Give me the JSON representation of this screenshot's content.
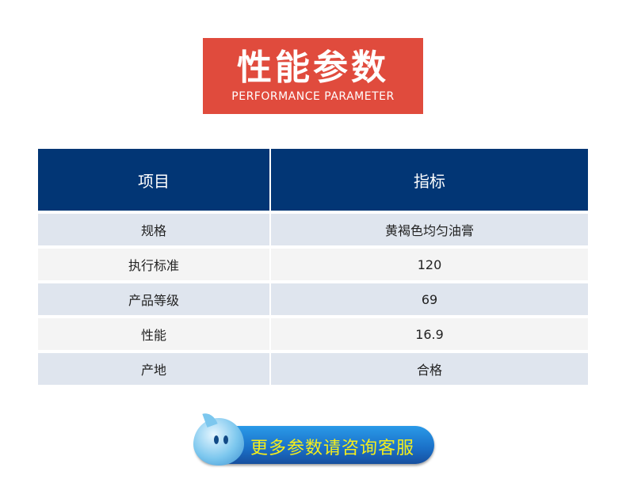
{
  "title": {
    "cn": "性能参数",
    "en": "PERFORMANCE PARAMETER"
  },
  "table": {
    "headers": [
      "项目",
      "指标"
    ],
    "rows": [
      {
        "item": "规格",
        "value": "黄褐色均匀油膏"
      },
      {
        "item": "执行标准",
        "value": "120"
      },
      {
        "item": "产品等级",
        "value": "69"
      },
      {
        "item": "性能",
        "value": "16.9"
      },
      {
        "item": "产地",
        "value": "合格"
      }
    ]
  },
  "cta": {
    "label": "更多参数请咨询客服",
    "icon": "qq-droplet-mascot-icon"
  },
  "colors": {
    "title_bg": "#e04b3d",
    "header_bg": "#023675",
    "row_odd": "#dfe5ee",
    "row_even": "#f4f4f4",
    "cta_text": "#f6ee1a"
  }
}
